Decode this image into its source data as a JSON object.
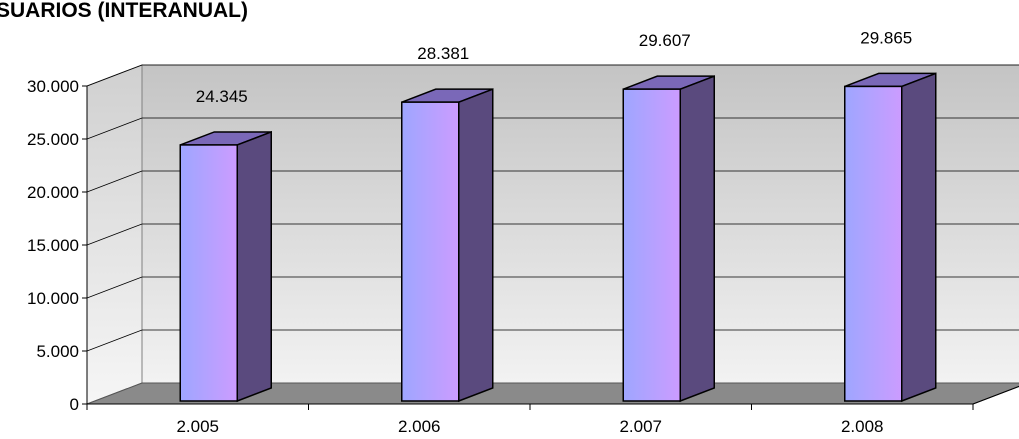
{
  "chart_data": {
    "type": "bar",
    "title": "SUARIOS (INTERANUAL)",
    "categories": [
      "2.005",
      "2.006",
      "2.007",
      "2.008"
    ],
    "values": [
      24345,
      28381,
      29607,
      29865
    ],
    "data_labels": [
      "24.345",
      "28.381",
      "29.607",
      "29.865"
    ],
    "ylim": [
      0,
      30000
    ],
    "yticks": [
      0,
      5000,
      10000,
      15000,
      20000,
      25000,
      30000
    ],
    "ytick_labels": [
      "0",
      "5.000",
      "10.000",
      "15.000",
      "20.000",
      "25.000",
      "30.000"
    ],
    "xlabel": "",
    "ylabel": "",
    "grid": true,
    "style": "3d-column",
    "colors": {
      "bar_front_left": "#9ea6ff",
      "bar_front_right": "#cc9cff",
      "bar_side": "#5a4a7e",
      "bar_top": "#7a68b8",
      "wall_top": "#c4c4c4",
      "wall_bottom": "#f2f2f2",
      "floor": "#8a8a8a"
    }
  }
}
